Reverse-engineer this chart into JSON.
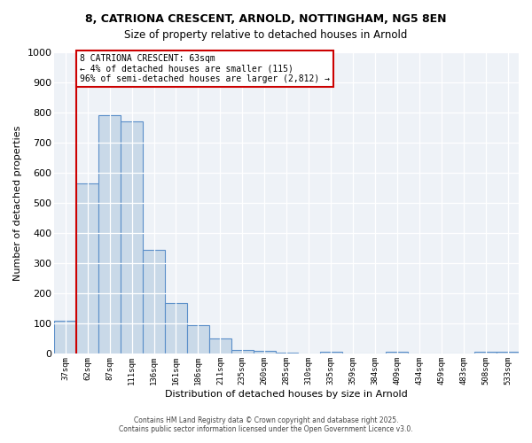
{
  "title_line1": "8, CATRIONA CRESCENT, ARNOLD, NOTTINGHAM, NG5 8EN",
  "title_line2": "Size of property relative to detached houses in Arnold",
  "xlabel": "Distribution of detached houses by size in Arnold",
  "ylabel": "Number of detached properties",
  "categories": [
    "37sqm",
    "62sqm",
    "87sqm",
    "111sqm",
    "136sqm",
    "161sqm",
    "186sqm",
    "211sqm",
    "235sqm",
    "260sqm",
    "285sqm",
    "310sqm",
    "335sqm",
    "359sqm",
    "384sqm",
    "409sqm",
    "434sqm",
    "459sqm",
    "483sqm",
    "508sqm",
    "533sqm"
  ],
  "values": [
    110,
    565,
    790,
    770,
    345,
    170,
    95,
    50,
    13,
    10,
    5,
    0,
    7,
    0,
    0,
    7,
    0,
    0,
    0,
    7,
    7
  ],
  "bar_color": "#c9d9e8",
  "bar_edge_color": "#5b8fc9",
  "ylim": [
    0,
    1000
  ],
  "yticks": [
    0,
    100,
    200,
    300,
    400,
    500,
    600,
    700,
    800,
    900,
    1000
  ],
  "marker_color": "#cc0000",
  "annotation_text": "8 CATRIONA CRESCENT: 63sqm\n← 4% of detached houses are smaller (115)\n96% of semi-detached houses are larger (2,812) →",
  "annotation_box_color": "#cc0000",
  "background_color": "#eef2f7",
  "footer_line1": "Contains HM Land Registry data © Crown copyright and database right 2025.",
  "footer_line2": "Contains public sector information licensed under the Open Government Licence v3.0."
}
